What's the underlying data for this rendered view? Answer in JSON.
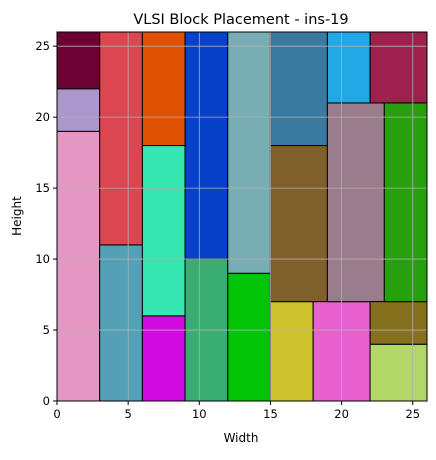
{
  "chart_data": {
    "type": "rectangle-placement",
    "title": "VLSI Block Placement - ins-19",
    "xlabel": "Width",
    "ylabel": "Height",
    "xlim": [
      0,
      26
    ],
    "ylim": [
      0,
      26
    ],
    "xticks": [
      0,
      5,
      10,
      15,
      20,
      25
    ],
    "yticks": [
      0,
      5,
      10,
      15,
      20,
      25
    ],
    "grid": true,
    "blocks": [
      {
        "x": 0,
        "y": 0,
        "w": 3,
        "h": 19,
        "color": "#e497c2"
      },
      {
        "x": 0,
        "y": 19,
        "w": 3,
        "h": 3,
        "color": "#ab97cd"
      },
      {
        "x": 0,
        "y": 22,
        "w": 3,
        "h": 4,
        "color": "#6c0133"
      },
      {
        "x": 3,
        "y": 0,
        "w": 3,
        "h": 11,
        "color": "#52a1b6"
      },
      {
        "x": 3,
        "y": 11,
        "w": 3,
        "h": 15,
        "color": "#db4651"
      },
      {
        "x": 6,
        "y": 0,
        "w": 3,
        "h": 6,
        "color": "#d20ce0"
      },
      {
        "x": 6,
        "y": 6,
        "w": 3,
        "h": 12,
        "color": "#35e6b0"
      },
      {
        "x": 6,
        "y": 18,
        "w": 3,
        "h": 8,
        "color": "#df5103"
      },
      {
        "x": 9,
        "y": 0,
        "w": 3,
        "h": 10,
        "color": "#3aad73"
      },
      {
        "x": 9,
        "y": 10,
        "w": 3,
        "h": 16,
        "color": "#0641c9"
      },
      {
        "x": 12,
        "y": 0,
        "w": 3,
        "h": 9,
        "color": "#03c407"
      },
      {
        "x": 12,
        "y": 9,
        "w": 3,
        "h": 17,
        "color": "#78adb4"
      },
      {
        "x": 15,
        "y": 0,
        "w": 3,
        "h": 7,
        "color": "#cdc22e"
      },
      {
        "x": 15,
        "y": 7,
        "w": 4,
        "h": 11,
        "color": "#7f5f2a"
      },
      {
        "x": 15,
        "y": 18,
        "w": 4,
        "h": 8,
        "color": "#3a7aa0"
      },
      {
        "x": 18,
        "y": 0,
        "w": 4,
        "h": 7,
        "color": "#e660ce"
      },
      {
        "x": 19,
        "y": 7,
        "w": 4,
        "h": 14,
        "color": "#9a7c8d"
      },
      {
        "x": 19,
        "y": 21,
        "w": 3,
        "h": 5,
        "color": "#21a8e5"
      },
      {
        "x": 22,
        "y": 0,
        "w": 4,
        "h": 4,
        "color": "#b3d669"
      },
      {
        "x": 22,
        "y": 4,
        "w": 4,
        "h": 3,
        "color": "#84701d"
      },
      {
        "x": 22,
        "y": 21,
        "w": 4,
        "h": 5,
        "color": "#9c214d"
      },
      {
        "x": 23,
        "y": 7,
        "w": 3,
        "h": 14,
        "color": "#25a10d"
      }
    ]
  }
}
